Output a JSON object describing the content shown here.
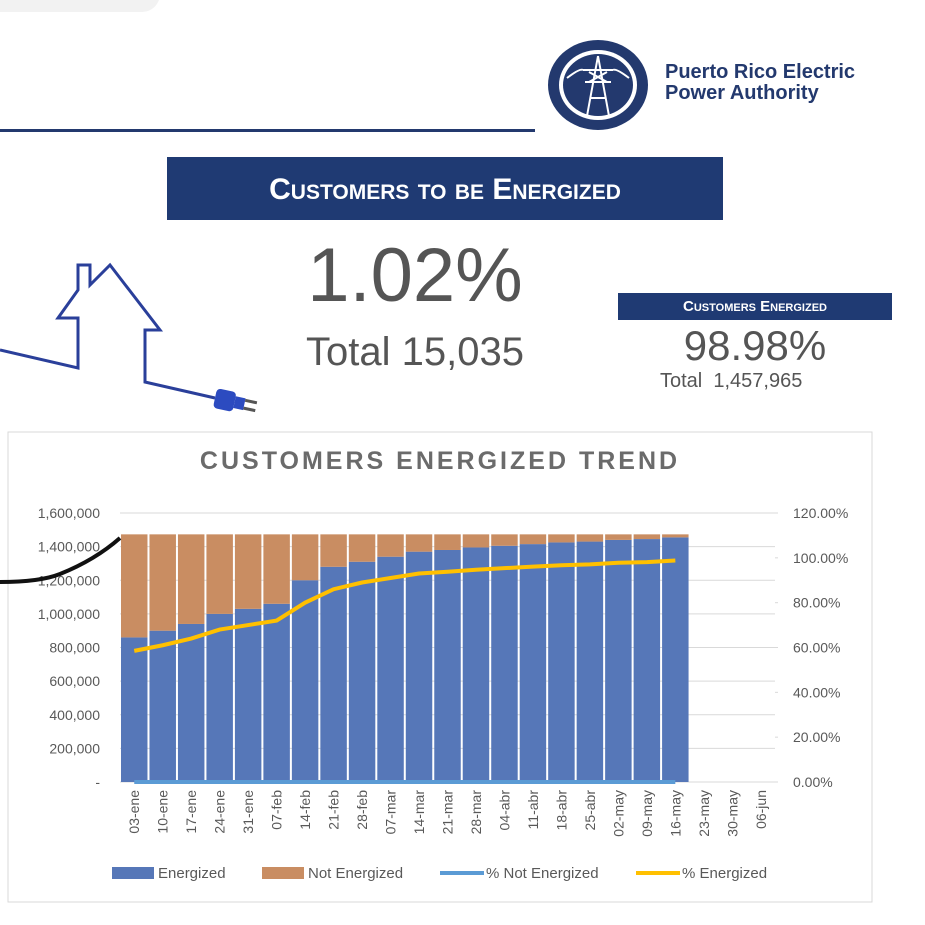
{
  "header": {
    "org": "Puerto Rico Electric Power Authority"
  },
  "kpi_pending": {
    "title": "Customers to be Energized",
    "percent": "1.02%",
    "total": "Total 15,035"
  },
  "kpi_energized": {
    "title": "Customers Energized",
    "percent": "98.98%",
    "total": "Total  1,457,965"
  },
  "chart_data": {
    "type": "bar",
    "title": "CUSTOMERS ENERGIZED TREND",
    "categories": [
      "03-ene",
      "10-ene",
      "17-ene",
      "24-ene",
      "31-ene",
      "07-feb",
      "14-feb",
      "21-feb",
      "28-feb",
      "07-mar",
      "14-mar",
      "21-mar",
      "28-mar",
      "04-abr",
      "11-abr",
      "18-abr",
      "25-abr",
      "02-may",
      "09-may",
      "16-may",
      "23-may",
      "30-may",
      "06-jun"
    ],
    "series": [
      {
        "name": "Energized",
        "color": "#5677b8",
        "values": [
          860000,
          900000,
          940000,
          1000000,
          1030000,
          1060000,
          1200000,
          1280000,
          1310000,
          1340000,
          1370000,
          1380000,
          1395000,
          1405000,
          1415000,
          1425000,
          1430000,
          1440000,
          1445000,
          1455000,
          null,
          null,
          null
        ]
      },
      {
        "name": "Not Energized",
        "color": "#c98d62",
        "values": [
          613000,
          573000,
          533000,
          473000,
          443000,
          413000,
          273000,
          193000,
          163000,
          133000,
          103000,
          93000,
          78000,
          68000,
          58000,
          48000,
          43000,
          33000,
          28000,
          18000,
          null,
          null,
          null
        ]
      },
      {
        "name": "% Not Energized",
        "type": "line",
        "axis": "y2",
        "color": "#5b9bd5",
        "values": [
          0,
          0,
          0,
          0,
          0,
          0,
          0,
          0,
          0,
          0,
          0,
          0,
          0,
          0,
          0,
          0,
          0,
          0,
          0,
          0,
          null,
          null,
          null
        ]
      },
      {
        "name": "% Energized",
        "type": "line",
        "axis": "y2",
        "color": "#ffc000",
        "values": [
          58.5,
          61,
          64,
          68,
          70,
          72,
          80,
          86,
          89,
          91,
          93,
          93.8,
          94.7,
          95.4,
          96.1,
          96.7,
          97.1,
          97.8,
          98.1,
          98.8,
          null,
          null,
          null
        ]
      }
    ],
    "ylim": [
      0,
      1600000
    ],
    "yticks": [
      {
        "value": 0,
        "label": "-"
      },
      {
        "value": 200000,
        "label": "200,000"
      },
      {
        "value": 400000,
        "label": "400,000"
      },
      {
        "value": 600000,
        "label": "600,000"
      },
      {
        "value": 800000,
        "label": "800,000"
      },
      {
        "value": 1000000,
        "label": "1,000,000"
      },
      {
        "value": 1200000,
        "label": "1,200,000"
      },
      {
        "value": 1400000,
        "label": "1,400,000"
      },
      {
        "value": 1600000,
        "label": "1,600,000"
      }
    ],
    "y2lim": [
      0,
      120
    ],
    "y2ticks": [
      {
        "value": 0,
        "label": "0.00%"
      },
      {
        "value": 20,
        "label": "20.00%"
      },
      {
        "value": 40,
        "label": "40.00%"
      },
      {
        "value": 60,
        "label": "60.00%"
      },
      {
        "value": 80,
        "label": "80.00%"
      },
      {
        "value": 100,
        "label": "100.00%"
      },
      {
        "value": 120,
        "label": "120.00%"
      }
    ],
    "grid": true,
    "legend": "bottom"
  }
}
